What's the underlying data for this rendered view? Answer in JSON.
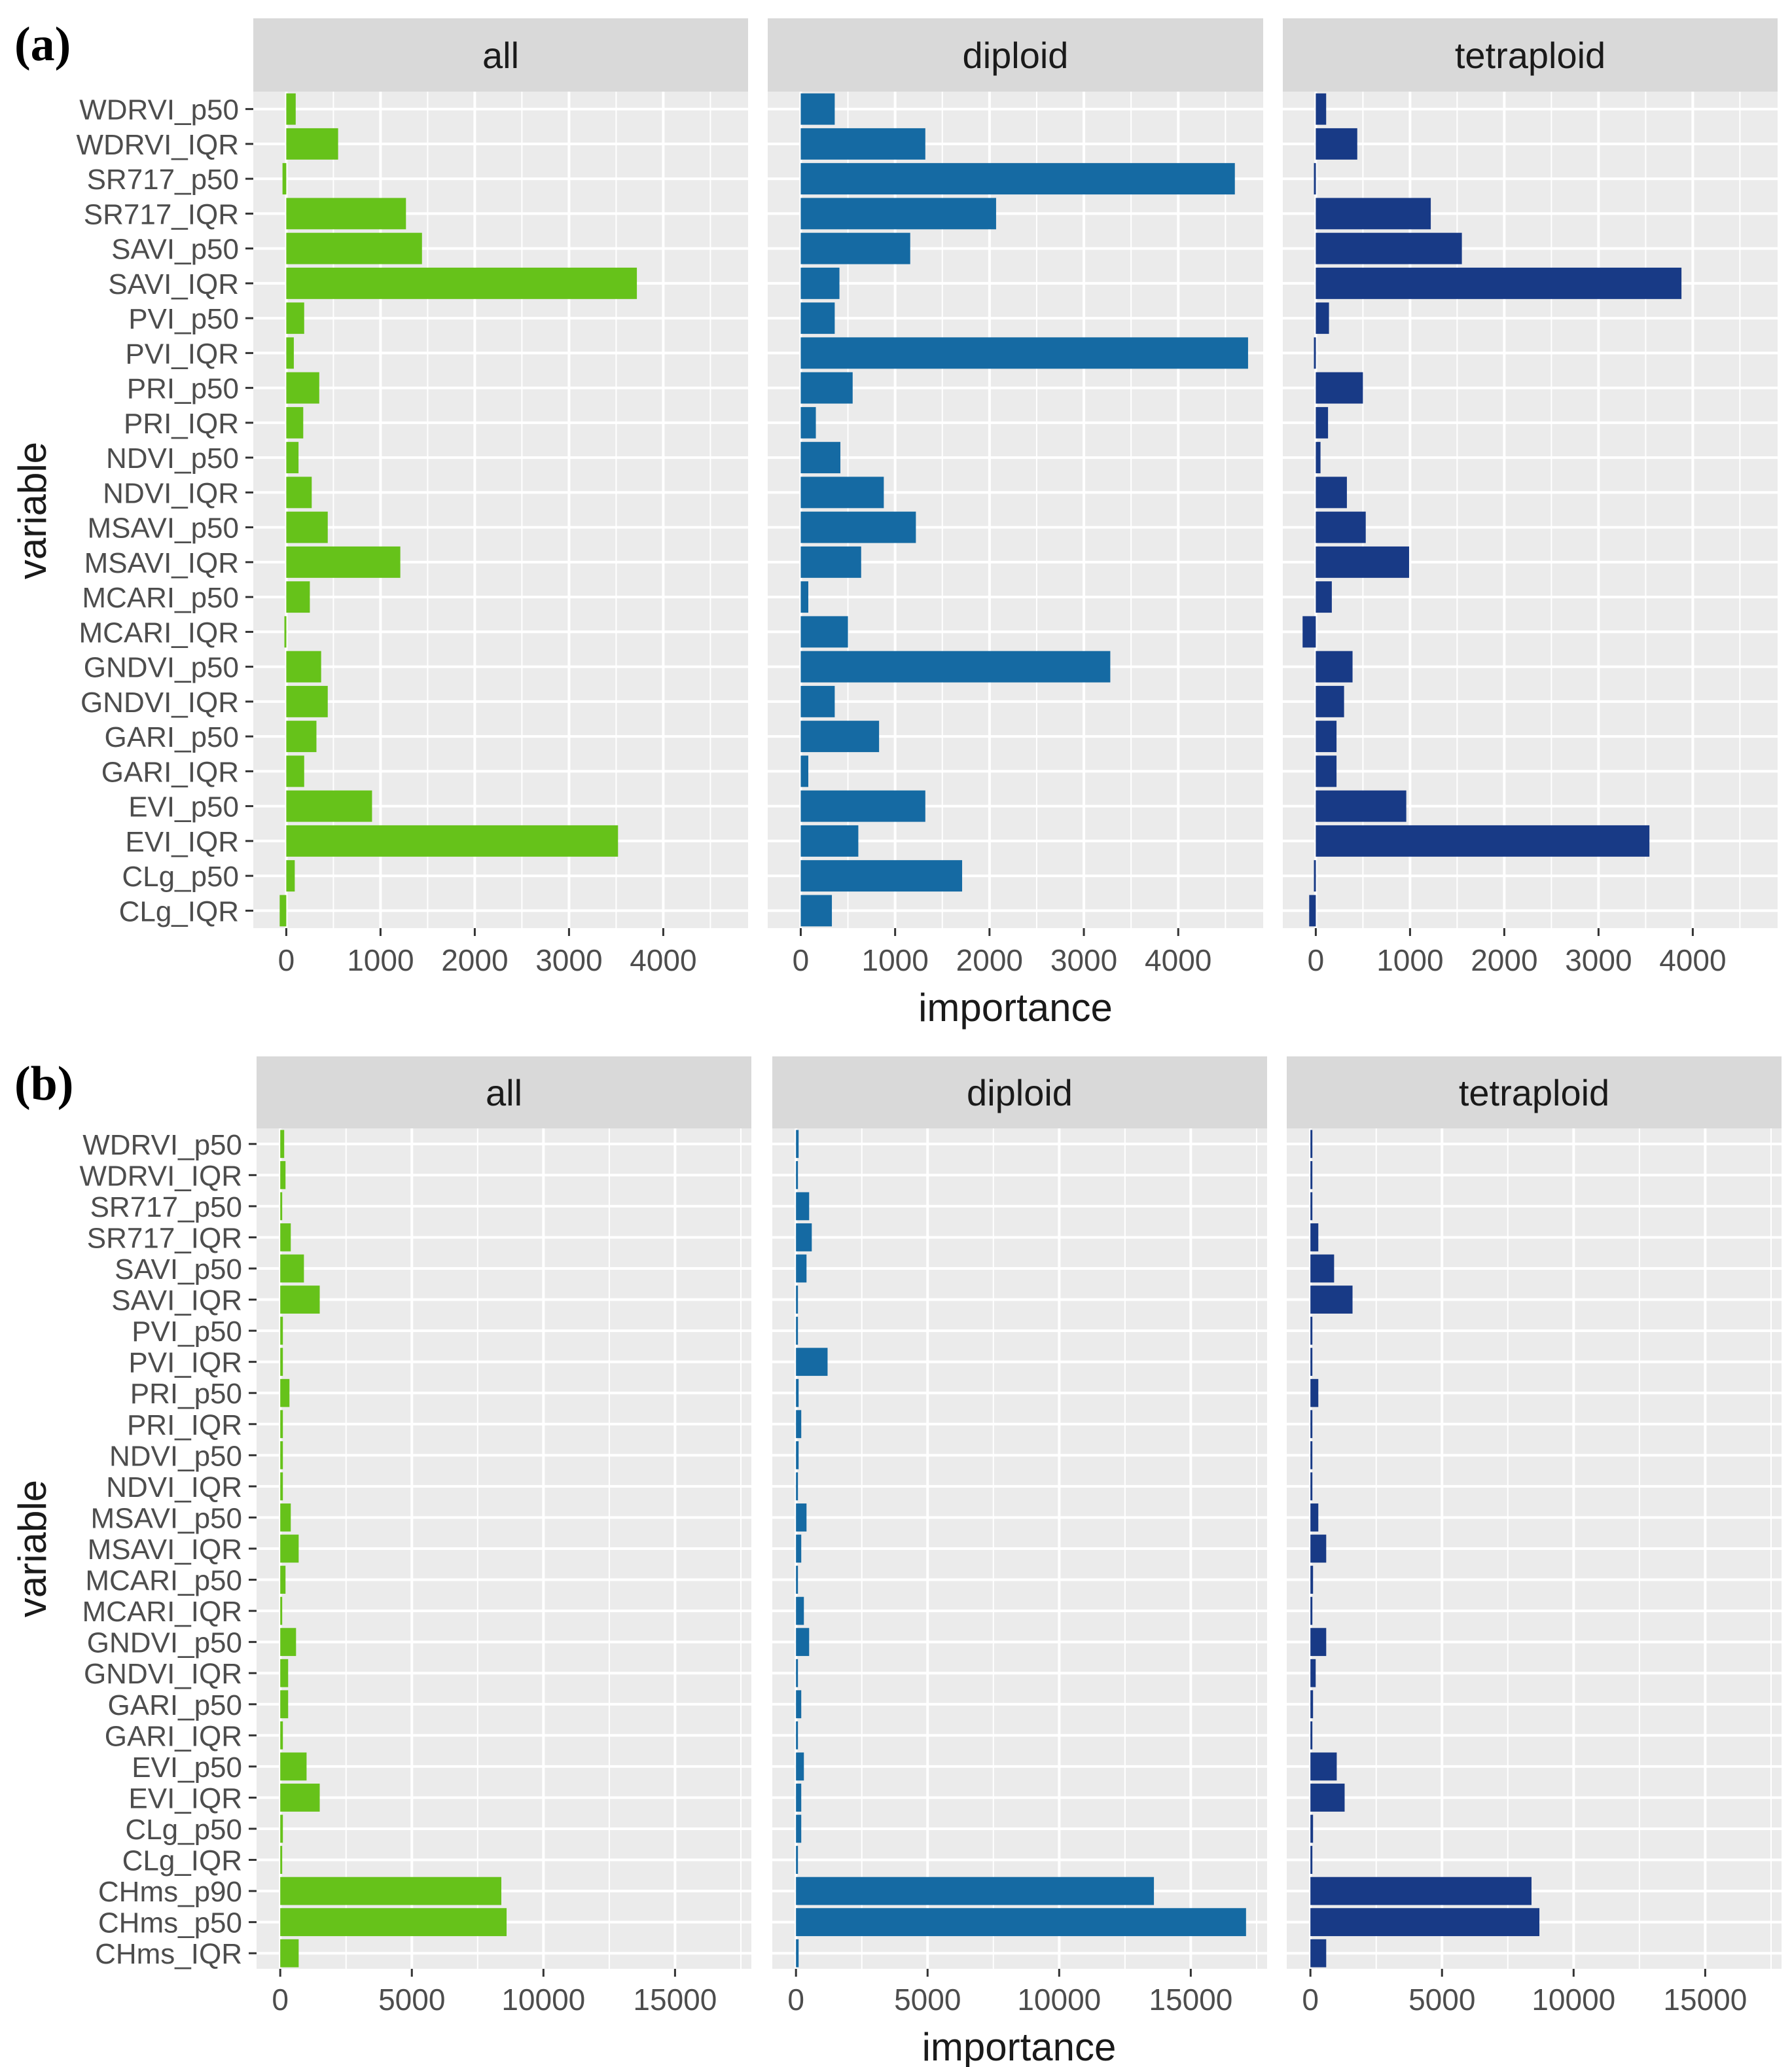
{
  "figure": {
    "colors": {
      "all": "#66c21a",
      "diploid": "#156aa3",
      "tetraploid": "#183a86",
      "panel_bg": "#ebebeb",
      "strip_bg": "#d9d9d9",
      "grid": "#ffffff",
      "text": "#4d4d4d"
    }
  },
  "chart_data": [
    {
      "type": "bar",
      "orientation": "horizontal",
      "panel_label": "(a)",
      "xlabel": "importance",
      "ylabel": "variable",
      "xlim": [
        -350,
        4900
      ],
      "xticks": [
        0,
        1000,
        2000,
        3000,
        4000
      ],
      "xtick_labels": [
        "0",
        "1000",
        "2000",
        "3000",
        "4000"
      ],
      "grid": true,
      "categories": [
        "WDRVI_p50",
        "WDRVI_IQR",
        "SR717_p50",
        "SR717_IQR",
        "SAVI_p50",
        "SAVI_IQR",
        "PVI_p50",
        "PVI_IQR",
        "PRI_p50",
        "PRI_IQR",
        "NDVI_p50",
        "NDVI_IQR",
        "MSAVI_p50",
        "MSAVI_IQR",
        "MCARI_p50",
        "MCARI_IQR",
        "GNDVI_p50",
        "GNDVI_IQR",
        "GARI_p50",
        "GARI_IQR",
        "EVI_p50",
        "EVI_IQR",
        "CLg_p50",
        "CLg_IQR"
      ],
      "series": [
        {
          "name": "all",
          "values": [
            100,
            550,
            -40,
            1270,
            1440,
            3720,
            190,
            80,
            350,
            180,
            130,
            270,
            440,
            1210,
            250,
            -20,
            370,
            440,
            320,
            190,
            910,
            3520,
            90,
            -70
          ]
        },
        {
          "name": "diploid",
          "values": [
            360,
            1320,
            4600,
            2070,
            1160,
            410,
            360,
            4740,
            550,
            160,
            420,
            880,
            1220,
            640,
            80,
            500,
            3280,
            360,
            830,
            80,
            1320,
            610,
            1710,
            330
          ]
        },
        {
          "name": "tetraploid",
          "values": [
            110,
            440,
            -20,
            1220,
            1550,
            3880,
            140,
            -20,
            500,
            130,
            50,
            330,
            530,
            990,
            170,
            -140,
            390,
            300,
            220,
            220,
            960,
            3540,
            -20,
            -70
          ]
        }
      ]
    },
    {
      "type": "bar",
      "orientation": "horizontal",
      "panel_label": "(b)",
      "xlabel": "importance",
      "ylabel": "variable",
      "xlim": [
        -900,
        17900
      ],
      "xticks": [
        0,
        5000,
        10000,
        15000
      ],
      "xtick_labels": [
        "0",
        "5000",
        "10000",
        "15000"
      ],
      "grid": true,
      "categories": [
        "WDRVI_p50",
        "WDRVI_IQR",
        "SR717_p50",
        "SR717_IQR",
        "SAVI_p50",
        "SAVI_IQR",
        "PVI_p50",
        "PVI_IQR",
        "PRI_p50",
        "PRI_IQR",
        "NDVI_p50",
        "NDVI_IQR",
        "MSAVI_p50",
        "MSAVI_IQR",
        "MCARI_p50",
        "MCARI_IQR",
        "GNDVI_p50",
        "GNDVI_IQR",
        "GARI_p50",
        "GARI_IQR",
        "EVI_p50",
        "EVI_IQR",
        "CLg_p50",
        "CLg_IQR",
        "CHms_p90",
        "CHms_p50",
        "CHms_IQR"
      ],
      "series": [
        {
          "name": "all",
          "values": [
            150,
            200,
            30,
            400,
            900,
            1500,
            100,
            100,
            350,
            100,
            100,
            100,
            400,
            700,
            200,
            30,
            600,
            300,
            300,
            100,
            1000,
            1500,
            100,
            30,
            8400,
            8600,
            700
          ]
        },
        {
          "name": "diploid",
          "values": [
            100,
            50,
            500,
            600,
            400,
            50,
            50,
            1200,
            100,
            200,
            100,
            50,
            400,
            200,
            30,
            300,
            500,
            50,
            200,
            50,
            300,
            200,
            200,
            30,
            13600,
            17100,
            100
          ]
        },
        {
          "name": "tetraploid",
          "values": [
            50,
            50,
            30,
            300,
            900,
            1600,
            50,
            50,
            300,
            50,
            50,
            50,
            300,
            600,
            100,
            30,
            600,
            200,
            100,
            50,
            1000,
            1300,
            100,
            30,
            8400,
            8700,
            600
          ]
        }
      ]
    }
  ]
}
